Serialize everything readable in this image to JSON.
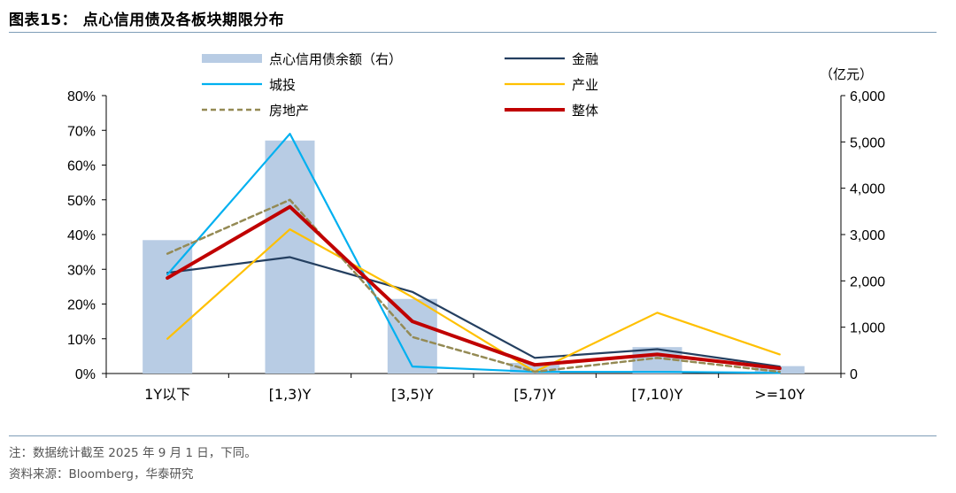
{
  "header": {
    "title": "图表15： 点心信用债及各板块期限分布"
  },
  "footer": {
    "note": "注：数据统计截至 2025 年 9 月 1 日，下同。",
    "source": "资料来源：Bloomberg，华泰研究"
  },
  "chart_data": {
    "type": "bar",
    "categories": [
      "1Y以下",
      "[1,3)Y",
      "[3,5)Y",
      "[5,7)Y",
      "[7,10)Y",
      ">=10Y"
    ],
    "y_left": {
      "ylim": [
        0,
        80
      ],
      "ticks": [
        "0%",
        "10%",
        "20%",
        "30%",
        "40%",
        "50%",
        "60%",
        "70%",
        "80%"
      ]
    },
    "y_right": {
      "ylim": [
        0,
        6000
      ],
      "unit": "（亿元）",
      "ticks": [
        "0",
        "1,000",
        "2,000",
        "3,000",
        "4,000",
        "5,000",
        "6,000"
      ]
    },
    "bars": {
      "name": "点心信用债余额（右）",
      "axis": "right",
      "color": "#b8cce4",
      "values": [
        2880,
        5030,
        1610,
        230,
        570,
        160
      ]
    },
    "series": [
      {
        "name": "金融",
        "axis": "left",
        "color": "#243f60",
        "style": "solid",
        "values": [
          29,
          33.5,
          23.5,
          4.5,
          7,
          2
        ]
      },
      {
        "name": "城投",
        "axis": "left",
        "color": "#00b0f0",
        "style": "solid",
        "values": [
          28.5,
          69,
          2,
          0.5,
          0.5,
          0.2
        ]
      },
      {
        "name": "产业",
        "axis": "left",
        "color": "#ffc000",
        "style": "solid",
        "values": [
          10,
          41.5,
          22,
          0.5,
          17.5,
          5.5
        ]
      },
      {
        "name": "房地产",
        "axis": "left",
        "color": "#948a54",
        "style": "dashed",
        "values": [
          34.5,
          50,
          10.5,
          0.5,
          4.5,
          0.5
        ]
      },
      {
        "name": "整体",
        "axis": "left",
        "color": "#c00000",
        "style": "thick",
        "values": [
          27.5,
          48,
          15,
          2.5,
          5.5,
          1.5
        ]
      }
    ],
    "legend": "top"
  }
}
